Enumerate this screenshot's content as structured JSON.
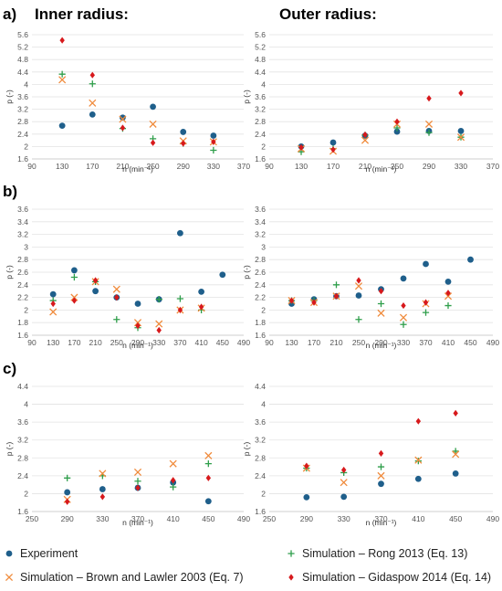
{
  "figure": {
    "row_labels": [
      "a)",
      "b)",
      "c)"
    ],
    "col_titles": [
      "Inner radius:",
      "Outer radius:"
    ],
    "xlabel": "n (min⁻¹)",
    "ylabel": "p (-)"
  },
  "colors": {
    "Experiment": "#1f5f8b",
    "Simulation – Rong 2013 (Eq. 13)": "#2e9e4a",
    "Simulation – Brown and Lawler 2003 (Eq. 7)": "#f08b3c",
    "Simulation – Gidaspow 2014 (Eq. 14)": "#d7191c"
  },
  "markers": {
    "Experiment": "circle",
    "Simulation – Rong 2013 (Eq. 13)": "plus",
    "Simulation – Brown and Lawler 2003 (Eq. 7)": "cross",
    "Simulation – Gidaspow 2014 (Eq. 14)": "diamond"
  },
  "legend": {
    "placement": "bottom",
    "items": [
      "Experiment",
      "Simulation – Rong 2013 (Eq. 13)",
      "Simulation – Brown and Lawler 2003 (Eq. 7)",
      "Simulation – Gidaspow 2014 (Eq. 14)"
    ]
  },
  "chart_data": [
    {
      "type": "scatter",
      "xlabel": "n (min⁻¹)",
      "ylabel": "p (-)",
      "xlim": [
        90,
        370
      ],
      "xticks": [
        90,
        130,
        170,
        210,
        250,
        290,
        330,
        370
      ],
      "ylim": [
        1.6,
        5.6
      ],
      "yticks": [
        "1.6",
        "2",
        "2.4",
        "2.8",
        "3.2",
        "3.6",
        "4",
        "4.4",
        "4.8",
        "5.2",
        "5.6"
      ],
      "grid": "horizontal",
      "x": [
        130,
        170,
        210,
        250,
        290,
        330
      ],
      "series": [
        {
          "name": "Experiment",
          "values": [
            2.67,
            3.03,
            2.93,
            3.28,
            2.47,
            2.35
          ]
        },
        {
          "name": "Simulation – Rong 2013 (Eq. 13)",
          "values": [
            4.33,
            4.02,
            2.58,
            2.25,
            2.1,
            1.88
          ]
        },
        {
          "name": "Simulation – Brown and Lawler 2003 (Eq. 7)",
          "values": [
            4.15,
            3.4,
            2.88,
            2.72,
            2.18,
            2.15
          ]
        },
        {
          "name": "Simulation – Gidaspow 2014 (Eq. 14)",
          "values": [
            5.42,
            4.3,
            2.6,
            2.12,
            2.1,
            2.15
          ]
        }
      ]
    },
    {
      "type": "scatter",
      "xlabel": "n (min⁻¹)",
      "ylabel": "p (-)",
      "xlim": [
        90,
        370
      ],
      "xticks": [
        90,
        130,
        170,
        210,
        250,
        290,
        330,
        370
      ],
      "ylim": [
        1.6,
        5.6
      ],
      "yticks": [
        "1.6",
        "2",
        "2.4",
        "2.8",
        "3.2",
        "3.6",
        "4",
        "4.4",
        "4.8",
        "5.2",
        "5.6"
      ],
      "grid": "horizontal",
      "x": [
        130,
        170,
        210,
        250,
        290,
        330
      ],
      "series": [
        {
          "name": "Experiment",
          "values": [
            2.0,
            2.13,
            2.35,
            2.48,
            2.5,
            2.5
          ]
        },
        {
          "name": "Simulation – Rong 2013 (Eq. 13)",
          "values": [
            1.83,
            1.93,
            2.37,
            2.6,
            2.45,
            2.3
          ]
        },
        {
          "name": "Simulation – Brown and Lawler 2003 (Eq. 7)",
          "values": [
            1.93,
            1.85,
            2.2,
            2.72,
            2.72,
            2.3
          ]
        },
        {
          "name": "Simulation – Gidaspow 2014 (Eq. 14)",
          "values": [
            1.97,
            1.9,
            2.38,
            2.8,
            3.55,
            3.72
          ]
        }
      ]
    },
    {
      "type": "scatter",
      "xlabel": "n (min⁻¹)",
      "ylabel": "p (-)",
      "xlim": [
        90,
        490
      ],
      "xticks": [
        90,
        130,
        170,
        210,
        250,
        290,
        330,
        370,
        410,
        450,
        490
      ],
      "ylim": [
        1.6,
        3.6
      ],
      "yticks": [
        "1.6",
        "1.8",
        "2",
        "2.2",
        "2.4",
        "2.6",
        "2.8",
        "3",
        "3.2",
        "3.4",
        "3.6"
      ],
      "grid": "horizontal",
      "x": [
        130,
        170,
        210,
        250,
        290,
        330,
        370,
        410,
        450
      ],
      "series": [
        {
          "name": "Experiment",
          "values": [
            2.25,
            2.63,
            2.3,
            2.2,
            2.1,
            2.17,
            3.22,
            2.29,
            2.56
          ]
        },
        {
          "name": "Simulation – Rong 2013 (Eq. 13)",
          "values": [
            2.15,
            2.52,
            2.45,
            1.85,
            1.72,
            2.17,
            2.18,
            2.0,
            null
          ]
        },
        {
          "name": "Simulation – Brown and Lawler 2003 (Eq. 7)",
          "values": [
            1.97,
            2.2,
            2.45,
            2.33,
            1.8,
            1.78,
            2.0,
            2.03,
            null
          ]
        },
        {
          "name": "Simulation – Gidaspow 2014 (Eq. 14)",
          "values": [
            2.1,
            2.15,
            2.47,
            2.2,
            1.75,
            1.68,
            2.0,
            2.05,
            null
          ]
        }
      ]
    },
    {
      "type": "scatter",
      "xlabel": "n (min⁻¹)",
      "ylabel": "p (-)",
      "xlim": [
        90,
        490
      ],
      "xticks": [
        90,
        130,
        170,
        210,
        250,
        290,
        330,
        370,
        410,
        450,
        490
      ],
      "ylim": [
        1.6,
        3.6
      ],
      "yticks": [
        "1.6",
        "1.8",
        "2",
        "2.2",
        "2.4",
        "2.6",
        "2.8",
        "3",
        "3.2",
        "3.4",
        "3.6"
      ],
      "grid": "horizontal",
      "x": [
        130,
        170,
        210,
        250,
        290,
        330,
        370,
        410,
        450
      ],
      "series": [
        {
          "name": "Experiment",
          "values": [
            2.1,
            2.17,
            2.22,
            2.23,
            2.33,
            2.5,
            2.73,
            2.45,
            2.8
          ]
        },
        {
          "name": "Simulation – Rong 2013 (Eq. 13)",
          "values": [
            2.15,
            2.15,
            2.4,
            1.85,
            2.1,
            1.77,
            1.96,
            2.07,
            null
          ]
        },
        {
          "name": "Simulation – Brown and Lawler 2003 (Eq. 7)",
          "values": [
            2.15,
            2.12,
            2.22,
            2.38,
            1.95,
            1.88,
            2.1,
            2.22,
            null
          ]
        },
        {
          "name": "Simulation – Gidaspow 2014 (Eq. 14)",
          "values": [
            2.15,
            2.12,
            2.22,
            2.47,
            2.3,
            2.07,
            2.12,
            2.27,
            null
          ]
        }
      ]
    },
    {
      "type": "scatter",
      "xlabel": "n (min⁻¹)",
      "ylabel": "p (-)",
      "xlim": [
        250,
        490
      ],
      "xticks": [
        250,
        290,
        330,
        370,
        410,
        450,
        490
      ],
      "ylim": [
        1.6,
        4.4
      ],
      "yticks": [
        "1.6",
        "2",
        "2.4",
        "2.8",
        "3.2",
        "3.6",
        "4",
        "4.4"
      ],
      "grid": "horizontal",
      "x": [
        290,
        330,
        370,
        410,
        450
      ],
      "series": [
        {
          "name": "Experiment",
          "values": [
            2.03,
            2.1,
            2.13,
            2.25,
            1.83
          ]
        },
        {
          "name": "Simulation – Rong 2013 (Eq. 13)",
          "values": [
            2.35,
            2.4,
            2.28,
            2.15,
            2.67
          ]
        },
        {
          "name": "Simulation – Brown and Lawler 2003 (Eq. 7)",
          "values": [
            1.87,
            2.45,
            2.48,
            2.67,
            2.85
          ]
        },
        {
          "name": "Simulation – Gidaspow 2014 (Eq. 14)",
          "values": [
            1.82,
            1.93,
            2.13,
            2.3,
            2.35
          ]
        }
      ]
    },
    {
      "type": "scatter",
      "xlabel": "n (min⁻¹)",
      "ylabel": "p (-)",
      "xlim": [
        250,
        490
      ],
      "xticks": [
        250,
        290,
        330,
        370,
        410,
        450,
        490
      ],
      "ylim": [
        1.6,
        4.4
      ],
      "yticks": [
        "1.6",
        "2",
        "2.4",
        "2.8",
        "3.2",
        "3.6",
        "4",
        "4.4"
      ],
      "grid": "horizontal",
      "x": [
        290,
        330,
        370,
        410,
        450
      ],
      "series": [
        {
          "name": "Experiment",
          "values": [
            1.92,
            1.93,
            2.22,
            2.33,
            2.45
          ]
        },
        {
          "name": "Simulation – Rong 2013 (Eq. 13)",
          "values": [
            2.57,
            2.47,
            2.6,
            2.73,
            2.95
          ]
        },
        {
          "name": "Simulation – Brown and Lawler 2003 (Eq. 7)",
          "values": [
            2.57,
            2.25,
            2.4,
            2.75,
            2.88
          ]
        },
        {
          "name": "Simulation – Gidaspow 2014 (Eq. 14)",
          "values": [
            2.62,
            2.53,
            2.9,
            3.62,
            3.8
          ]
        }
      ]
    }
  ]
}
